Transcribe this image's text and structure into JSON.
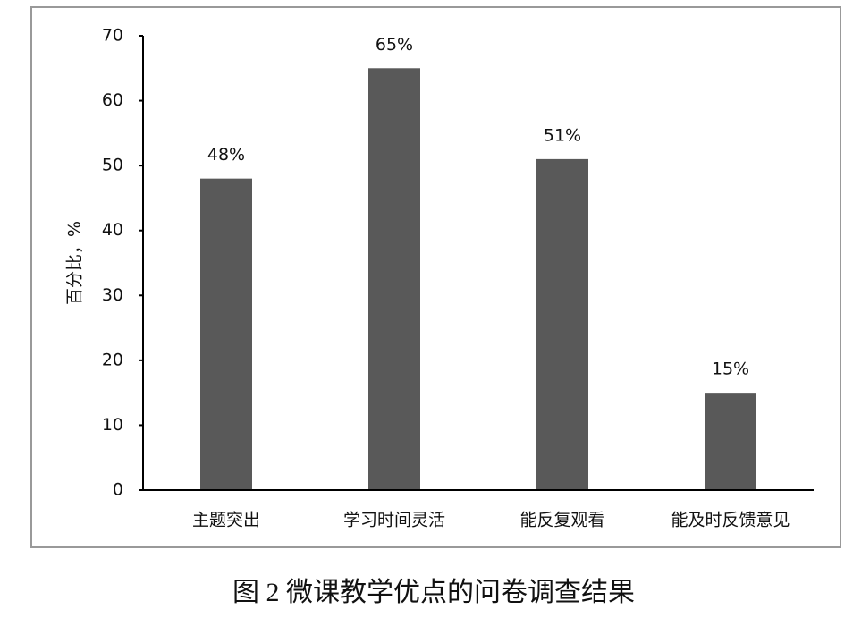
{
  "chart_data": {
    "type": "bar",
    "y_label": "百分比，%",
    "categories": [
      "主题突出",
      "学习时间灵活",
      "能反复观看",
      "能及时反馈意见"
    ],
    "values": [
      48,
      65,
      51,
      15
    ],
    "value_labels": [
      "48%",
      "65%",
      "51%",
      "15%"
    ],
    "color": "#595959",
    "ylim": [
      0,
      70
    ],
    "yticks": [
      0,
      10,
      20,
      30,
      40,
      50,
      60,
      70
    ],
    "grid": false
  },
  "caption": "图 2  微课教学优点的问卷调查结果"
}
